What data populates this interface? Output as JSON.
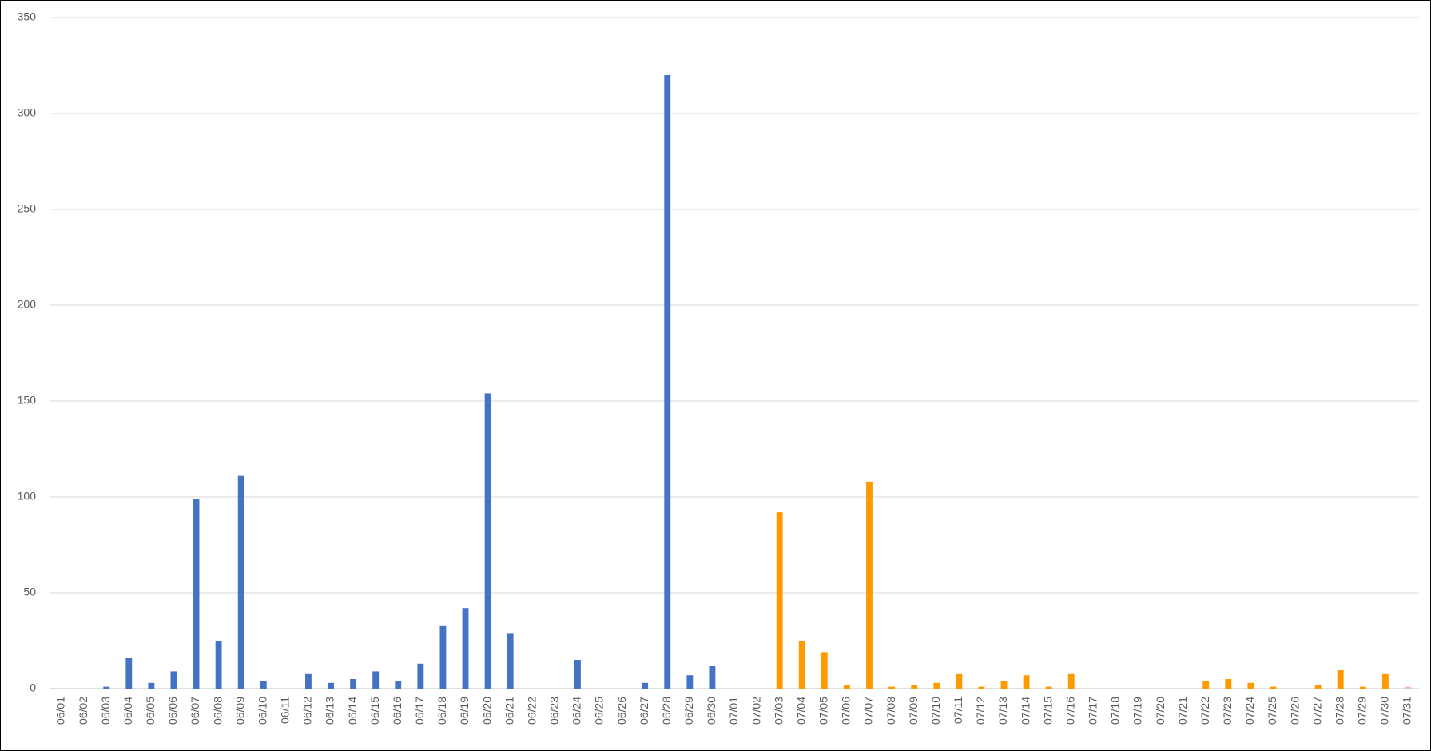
{
  "chart_data": {
    "type": "bar",
    "categories": [
      "06/01",
      "06/02",
      "06/03",
      "06/04",
      "06/05",
      "06/06",
      "06/07",
      "06/08",
      "06/09",
      "06/10",
      "06/11",
      "06/12",
      "06/13",
      "06/14",
      "06/15",
      "06/16",
      "06/17",
      "06/18",
      "06/19",
      "06/20",
      "06/21",
      "06/22",
      "06/23",
      "06/24",
      "06/25",
      "06/26",
      "06/27",
      "06/28",
      "06/29",
      "06/30",
      "07/01",
      "07/02",
      "07/03",
      "07/04",
      "07/05",
      "07/06",
      "07/07",
      "07/08",
      "07/09",
      "07/10",
      "07/11",
      "07/12",
      "07/13",
      "07/14",
      "07/15",
      "07/16",
      "07/17",
      "07/18",
      "07/19",
      "07/20",
      "07/21",
      "07/22",
      "07/23",
      "07/24",
      "07/25",
      "07/26",
      "07/27",
      "07/28",
      "07/29",
      "07/30",
      "07/31"
    ],
    "values": [
      0,
      0,
      1,
      16,
      3,
      9,
      99,
      25,
      111,
      4,
      0,
      8,
      3,
      5,
      9,
      4,
      13,
      33,
      42,
      154,
      29,
      0,
      0,
      15,
      0,
      0,
      3,
      320,
      7,
      12,
      0,
      0,
      92,
      25,
      19,
      2,
      108,
      1,
      2,
      3,
      8,
      1,
      4,
      7,
      1,
      8,
      0,
      0,
      0,
      0,
      0,
      4,
      5,
      3,
      1,
      0,
      2,
      10,
      1,
      8,
      1
    ],
    "colors": [
      "#4472c4",
      "#4472c4",
      "#4472c4",
      "#4472c4",
      "#4472c4",
      "#4472c4",
      "#4472c4",
      "#4472c4",
      "#4472c4",
      "#4472c4",
      "#4472c4",
      "#4472c4",
      "#4472c4",
      "#4472c4",
      "#4472c4",
      "#4472c4",
      "#4472c4",
      "#4472c4",
      "#4472c4",
      "#4472c4",
      "#4472c4",
      "#4472c4",
      "#4472c4",
      "#4472c4",
      "#4472c4",
      "#4472c4",
      "#4472c4",
      "#4472c4",
      "#4472c4",
      "#4472c4",
      "#ff9900",
      "#ff9900",
      "#ff9900",
      "#ff9900",
      "#ff9900",
      "#ff9900",
      "#ff9900",
      "#ff9900",
      "#ff9900",
      "#ff9900",
      "#ff9900",
      "#ff9900",
      "#ff9900",
      "#ff9900",
      "#ff9900",
      "#ff9900",
      "#ff9900",
      "#ff9900",
      "#ff9900",
      "#ff9900",
      "#ff9900",
      "#ff9900",
      "#ff9900",
      "#ff9900",
      "#ff9900",
      "#ff9900",
      "#ff9900",
      "#ff9900",
      "#ff9900",
      "#ff9900",
      "#f4b6a8"
    ],
    "ylim": [
      0,
      350
    ],
    "yticks": [
      0,
      50,
      100,
      150,
      200,
      250,
      300,
      350
    ],
    "grid": true
  }
}
